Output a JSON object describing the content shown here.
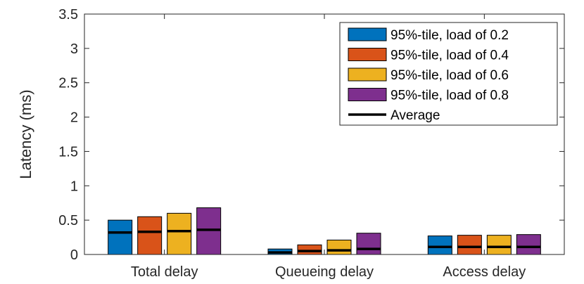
{
  "chart_data": {
    "type": "bar",
    "categories": [
      "Total delay",
      "Queueing delay",
      "Access delay"
    ],
    "ylabel": "Latency (ms)",
    "ylim": [
      0,
      3.5
    ],
    "yticks": [
      "0",
      "0.5",
      "1",
      "1.5",
      "2",
      "2.5",
      "3",
      "3.5"
    ],
    "series": [
      {
        "name": "95%-tile, load of 0.2",
        "color": "#0072BD",
        "values": [
          0.5,
          0.08,
          0.27
        ],
        "averages": [
          0.32,
          0.03,
          0.11
        ]
      },
      {
        "name": "95%-tile, load of 0.4",
        "color": "#D95319",
        "values": [
          0.55,
          0.14,
          0.28
        ],
        "averages": [
          0.33,
          0.05,
          0.11
        ]
      },
      {
        "name": "95%-tile, load of 0.6",
        "color": "#EDB120",
        "values": [
          0.6,
          0.21,
          0.28
        ],
        "averages": [
          0.34,
          0.06,
          0.11
        ]
      },
      {
        "name": "95%-tile, load of 0.8",
        "color": "#7E2F8E",
        "values": [
          0.68,
          0.31,
          0.29
        ],
        "averages": [
          0.36,
          0.08,
          0.11
        ]
      }
    ],
    "average_legend": "Average",
    "legend_position": "top-right",
    "grid": false
  }
}
